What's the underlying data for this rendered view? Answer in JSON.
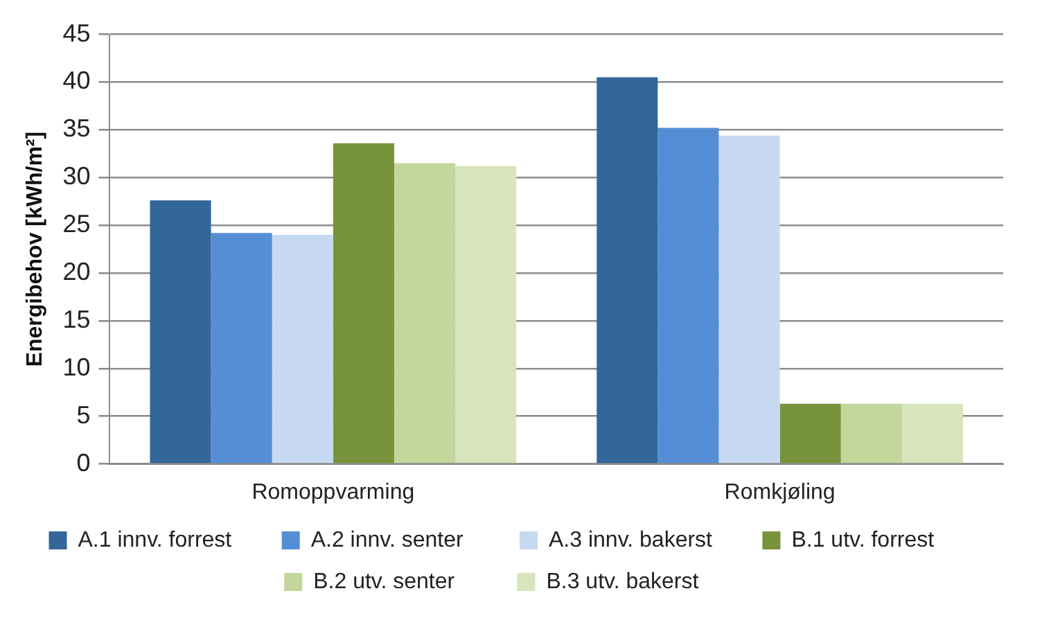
{
  "chart_data": {
    "type": "bar",
    "ylabel": "Energibehov [kWh/m²]",
    "categories": [
      "Romoppvarming",
      "Romkjøling"
    ],
    "series": [
      {
        "name": "A.1 innv. forrest",
        "color": "#336699",
        "values": [
          27.6,
          40.5
        ]
      },
      {
        "name": "A.2 innv. senter",
        "color": "#558ed5",
        "values": [
          24.2,
          35.2
        ]
      },
      {
        "name": "A.3 innv. bakerst",
        "color": "#c6d9f0",
        "values": [
          24.0,
          34.4
        ]
      },
      {
        "name": "B.1 utv. forrest",
        "color": "#77933c",
        "values": [
          33.6,
          6.3
        ]
      },
      {
        "name": "B.2 utv. senter",
        "color": "#c3d69b",
        "values": [
          31.5,
          6.3
        ]
      },
      {
        "name": "B.3 utv. bakerst",
        "color": "#d7e4bc",
        "values": [
          31.2,
          6.3
        ]
      }
    ],
    "ylim": [
      0,
      45
    ],
    "yticks": [
      0,
      5,
      10,
      15,
      20,
      25,
      30,
      35,
      40,
      45
    ],
    "grid": "y",
    "legend": "bottom"
  }
}
